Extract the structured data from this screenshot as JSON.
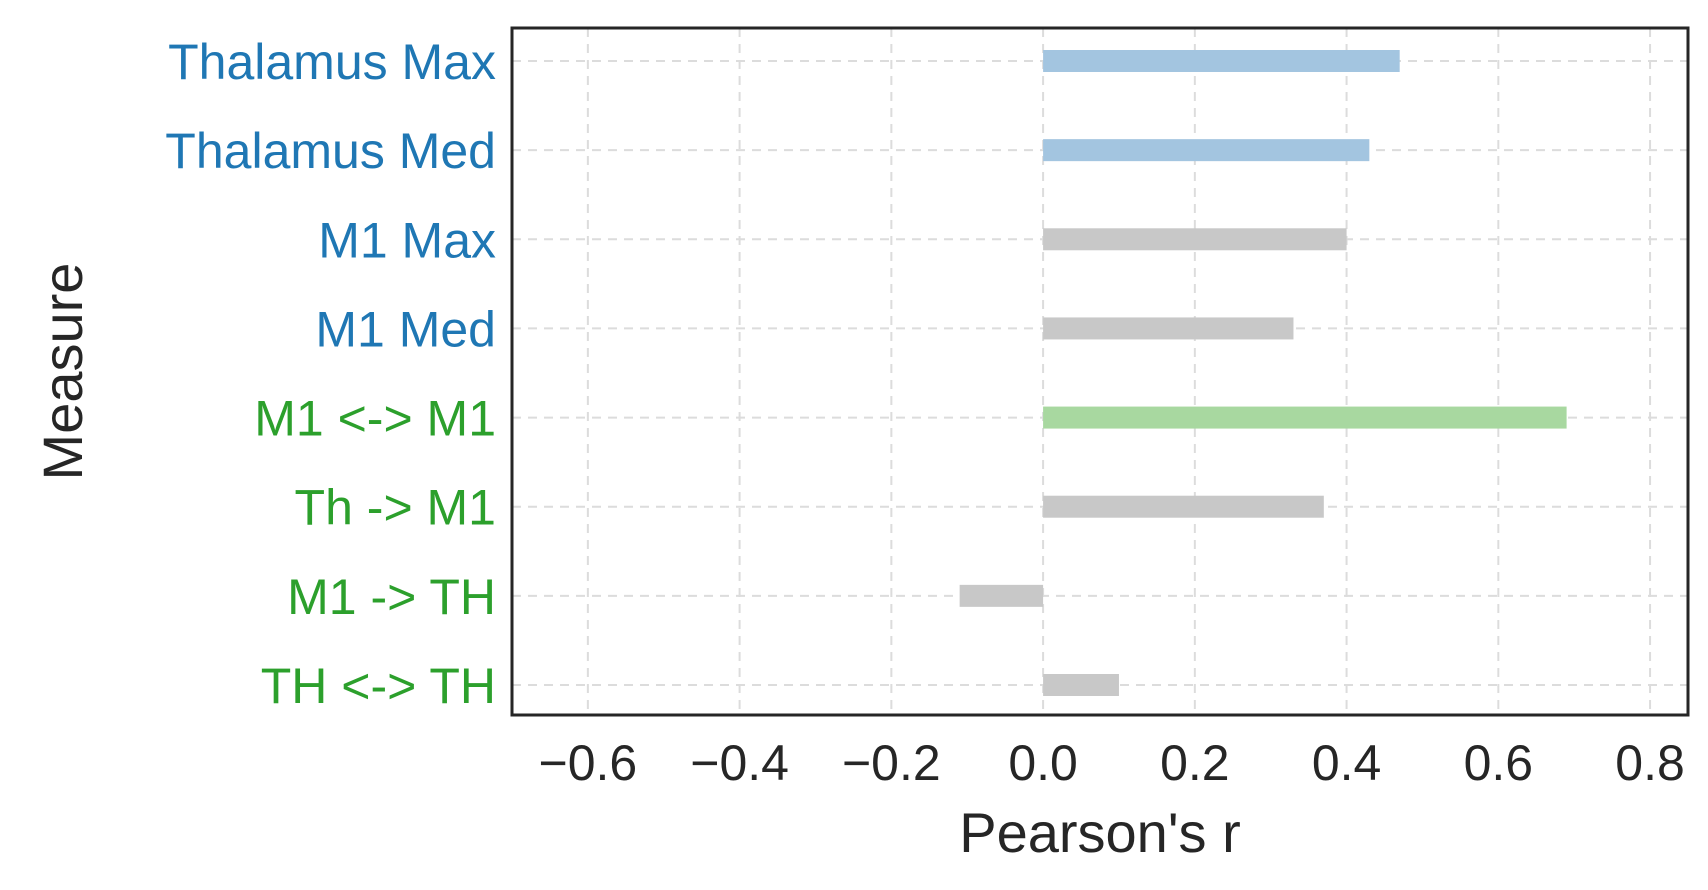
{
  "chart_data": {
    "type": "bar",
    "orientation": "horizontal",
    "xlabel": "Pearson's r",
    "ylabel": "Measure",
    "xlim": [
      -0.7,
      0.85
    ],
    "xticks": [
      -0.6,
      -0.4,
      -0.2,
      0.0,
      0.2,
      0.4,
      0.6,
      0.8
    ],
    "xtick_labels": [
      "−0.6",
      "−0.4",
      "−0.2",
      "0.0",
      "0.2",
      "0.4",
      "0.6",
      "0.8"
    ],
    "grid": true,
    "legend": "none",
    "categories": [
      "Thalamus Max",
      "Thalamus Med",
      "M1 Max",
      "M1 Med",
      "M1 <-> M1",
      "Th -> M1",
      "M1 -> TH",
      "TH <-> TH"
    ],
    "category_label_colors": [
      "#1f77b4",
      "#1f77b4",
      "#1f77b4",
      "#1f77b4",
      "#2ca02c",
      "#2ca02c",
      "#2ca02c",
      "#2ca02c"
    ],
    "values": [
      0.47,
      0.43,
      0.4,
      0.33,
      0.69,
      0.37,
      -0.11,
      0.1
    ],
    "bar_colors": [
      "#a3c5e0",
      "#a3c5e0",
      "#c8c8c8",
      "#c8c8c8",
      "#a8d8a0",
      "#c8c8c8",
      "#c8c8c8",
      "#c8c8c8"
    ]
  }
}
